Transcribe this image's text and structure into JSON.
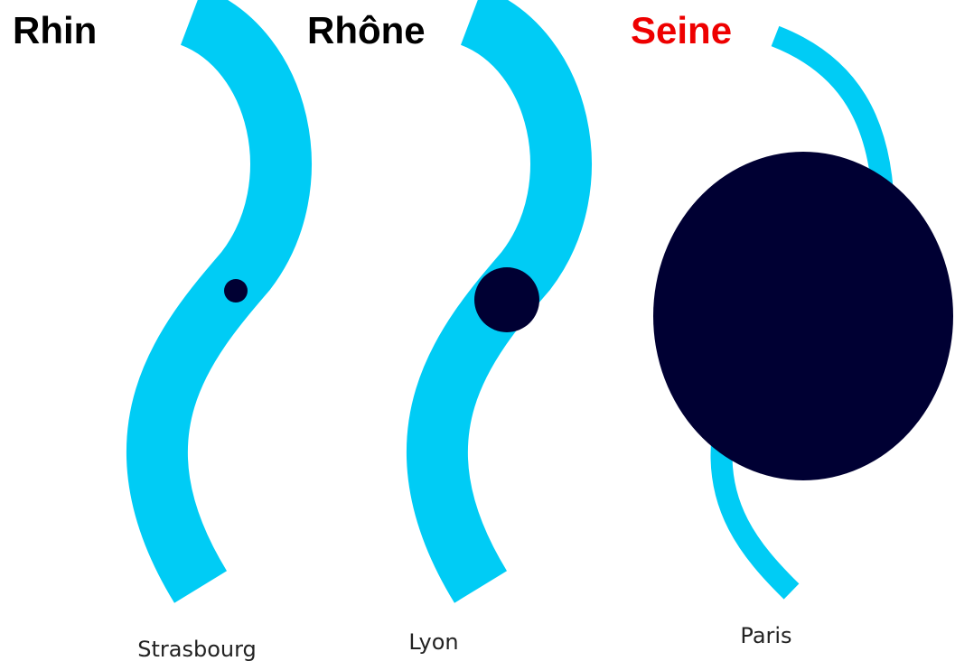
{
  "rivers": [
    {
      "name": "Rhin",
      "city": "Strasbourg"
    },
    {
      "name": "Rhône",
      "city": "Lyon"
    },
    {
      "name": "Seine",
      "city": "Paris"
    }
  ]
}
